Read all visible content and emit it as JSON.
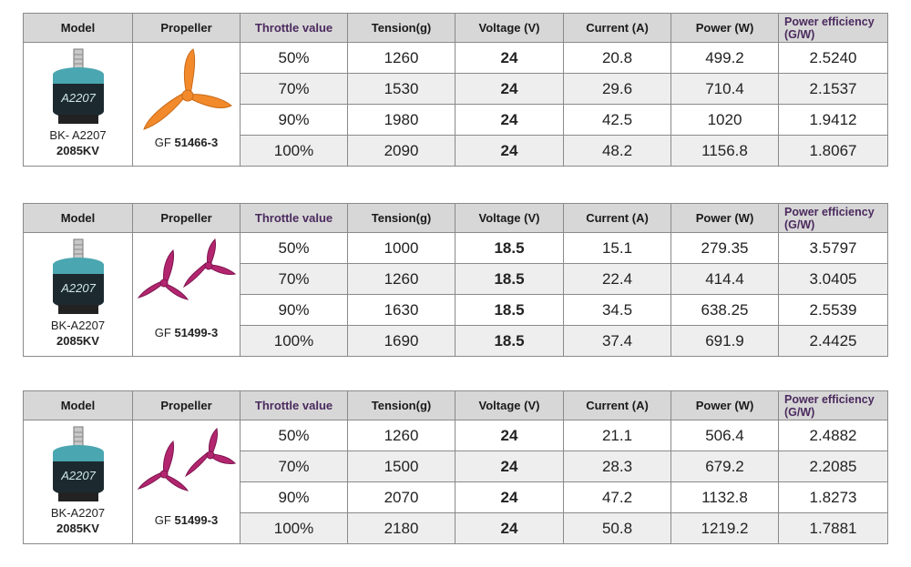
{
  "headers": {
    "model": "Model",
    "propeller": "Propeller",
    "throttle": "Throttle value",
    "tension": "Tension(g)",
    "voltage": "Voltage (V)",
    "current": "Current (A)",
    "power": "Power (W)",
    "efficiency_line1": "Power efficiency",
    "efficiency_line2": "(G/W)"
  },
  "motor_label_text": "A2207",
  "tables": [
    {
      "model_name": "BK- A2207",
      "model_kv": "2085KV",
      "prop_prefix": "GF",
      "prop_code": "51466-3",
      "prop_color": "#f28a2c",
      "rows": [
        {
          "throttle": "50%",
          "tension": "1260",
          "voltage": "24",
          "current": "20.8",
          "power": "499.2",
          "efficiency": "2.5240"
        },
        {
          "throttle": "70%",
          "tension": "1530",
          "voltage": "24",
          "current": "29.6",
          "power": "710.4",
          "efficiency": "2.1537"
        },
        {
          "throttle": "90%",
          "tension": "1980",
          "voltage": "24",
          "current": "42.5",
          "power": "1020",
          "efficiency": "1.9412"
        },
        {
          "throttle": "100%",
          "tension": "2090",
          "voltage": "24",
          "current": "48.2",
          "power": "1156.8",
          "efficiency": "1.8067"
        }
      ]
    },
    {
      "model_name": "BK-A2207",
      "model_kv": "2085KV",
      "prop_prefix": "GF",
      "prop_code": "51499-3",
      "prop_color": "#b3266f",
      "rows": [
        {
          "throttle": "50%",
          "tension": "1000",
          "voltage": "18.5",
          "current": "15.1",
          "power": "279.35",
          "efficiency": "3.5797"
        },
        {
          "throttle": "70%",
          "tension": "1260",
          "voltage": "18.5",
          "current": "22.4",
          "power": "414.4",
          "efficiency": "3.0405"
        },
        {
          "throttle": "90%",
          "tension": "1630",
          "voltage": "18.5",
          "current": "34.5",
          "power": "638.25",
          "efficiency": "2.5539"
        },
        {
          "throttle": "100%",
          "tension": "1690",
          "voltage": "18.5",
          "current": "37.4",
          "power": "691.9",
          "efficiency": "2.4425"
        }
      ]
    },
    {
      "model_name": "BK-A2207",
      "model_kv": "2085KV",
      "prop_prefix": "GF",
      "prop_code": "51499-3",
      "prop_color": "#b3266f",
      "rows": [
        {
          "throttle": "50%",
          "tension": "1260",
          "voltage": "24",
          "current": "21.1",
          "power": "506.4",
          "efficiency": "2.4882"
        },
        {
          "throttle": "70%",
          "tension": "1500",
          "voltage": "24",
          "current": "28.3",
          "power": "679.2",
          "efficiency": "2.2085"
        },
        {
          "throttle": "90%",
          "tension": "2070",
          "voltage": "24",
          "current": "47.2",
          "power": "1132.8",
          "efficiency": "1.8273"
        },
        {
          "throttle": "100%",
          "tension": "2180",
          "voltage": "24",
          "current": "50.8",
          "power": "1219.2",
          "efficiency": "1.7881"
        }
      ]
    }
  ]
}
